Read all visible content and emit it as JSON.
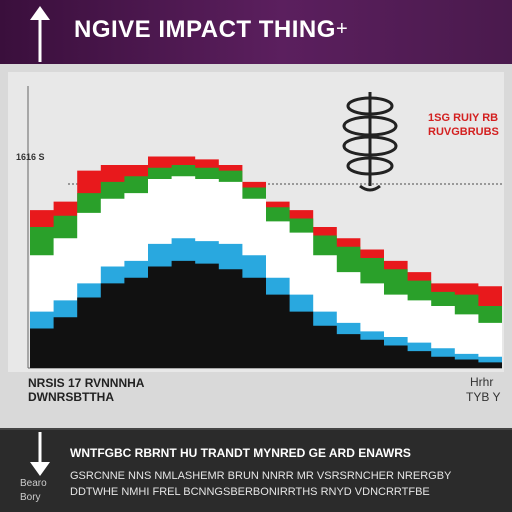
{
  "header": {
    "title": "NGIVE IMPACT THING",
    "plus": "+",
    "bg": "#4a1a4d"
  },
  "chart": {
    "corner_tag": "1616 S",
    "legend": {
      "line1": "1SG RUIY RB",
      "line2": "RUVGBRUBS"
    },
    "caption_left": [
      "NRSIS 17 RVNNNHA",
      "DWNRSBTTHA"
    ],
    "caption_right": [
      "Hrhr",
      "TYB Y"
    ]
  },
  "chart_data": {
    "type": "area",
    "x": [
      0,
      1,
      2,
      3,
      4,
      5,
      6,
      7,
      8,
      9,
      10,
      11,
      12,
      13,
      14,
      15,
      16,
      17,
      18,
      19,
      20
    ],
    "series": [
      {
        "color": "#e8191c",
        "values": [
          56,
          59,
          70,
          72,
          72,
          75,
          75,
          74,
          72,
          66,
          59,
          56,
          50,
          46,
          42,
          38,
          34,
          30,
          30,
          29,
          27
        ]
      },
      {
        "color": "#2aa02a",
        "values": [
          50,
          54,
          62,
          66,
          68,
          71,
          72,
          71,
          70,
          64,
          57,
          53,
          47,
          43,
          39,
          35,
          31,
          27,
          26,
          22,
          19
        ]
      },
      {
        "color": "#ffffff",
        "values": [
          40,
          46,
          55,
          60,
          62,
          67,
          68,
          67,
          66,
          60,
          52,
          48,
          40,
          34,
          30,
          26,
          24,
          22,
          19,
          16,
          14
        ]
      },
      {
        "color": "#29a8df",
        "values": [
          20,
          24,
          30,
          36,
          38,
          44,
          46,
          45,
          44,
          40,
          32,
          26,
          20,
          16,
          13,
          11,
          9,
          7,
          5,
          4,
          3
        ]
      },
      {
        "color": "#111111",
        "values": [
          14,
          18,
          25,
          30,
          32,
          36,
          38,
          37,
          35,
          32,
          26,
          20,
          15,
          12,
          10,
          8,
          6,
          4,
          3,
          2,
          1
        ]
      }
    ],
    "ylim": [
      0,
      100
    ],
    "grid": false
  },
  "bottom": {
    "heading": "WNTFGBC RBRNT HU TRANDT MYNRED GE ARD ENAWRS",
    "text1": "GSRCNNE NNS NMLASHEMR BRUN NNRR MR VSRSRNCHER NRERGBY",
    "text2": "DDTWHE NMHI FREL BCNNGSBERBONIRRTHS RNYD VDNCRRTFBE",
    "small1": "Bearo",
    "small2": "Bory"
  }
}
